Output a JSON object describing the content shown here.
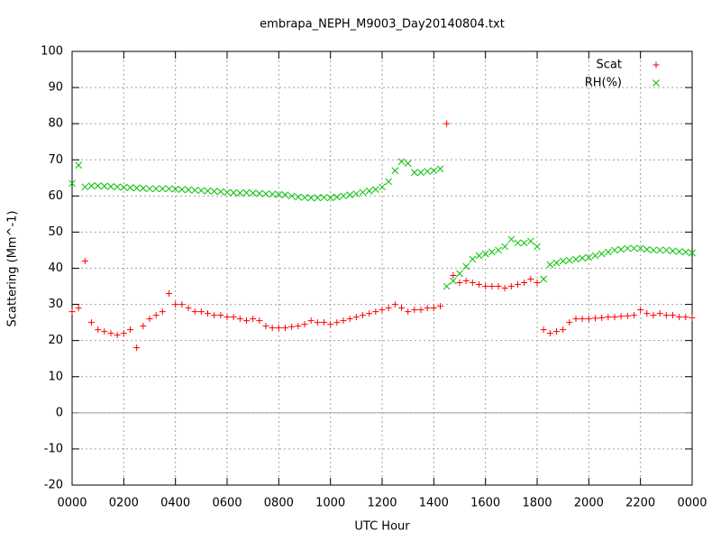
{
  "chart_data": {
    "type": "scatter",
    "title": "embrapa_NEPH_M9003_Day20140804.txt",
    "xlabel": "UTC Hour",
    "ylabel": "Scattering (Mm^-1)",
    "x": [
      0,
      0.25,
      0.5,
      0.75,
      1,
      1.25,
      1.5,
      1.75,
      2,
      2.25,
      2.5,
      2.75,
      3,
      3.25,
      3.5,
      3.75,
      4,
      4.25,
      4.5,
      4.75,
      5,
      5.25,
      5.5,
      5.75,
      6,
      6.25,
      6.5,
      6.75,
      7,
      7.25,
      7.5,
      7.75,
      8,
      8.25,
      8.5,
      8.75,
      9,
      9.25,
      9.5,
      9.75,
      10,
      10.25,
      10.5,
      10.75,
      11,
      11.25,
      11.5,
      11.75,
      12,
      12.25,
      12.5,
      12.75,
      13,
      13.25,
      13.5,
      13.75,
      14,
      14.25,
      14.5,
      14.75,
      15,
      15.25,
      15.5,
      15.75,
      16,
      16.25,
      16.5,
      16.75,
      17,
      17.25,
      17.5,
      17.75,
      18,
      18.25,
      18.5,
      18.75,
      19,
      19.25,
      19.5,
      19.75,
      20,
      20.25,
      20.5,
      20.75,
      21,
      21.25,
      21.5,
      21.75,
      22,
      22.25,
      22.5,
      22.75,
      23,
      23.25,
      23.5,
      23.75,
      24
    ],
    "series": [
      {
        "name": "Scat",
        "color": "#ff0000",
        "marker": "plus",
        "values": [
          28,
          29,
          42,
          25,
          23,
          22.5,
          22,
          21.5,
          22,
          23,
          18,
          24,
          26,
          27,
          28,
          33,
          30,
          30,
          29,
          28,
          28,
          27.5,
          27,
          27,
          26.5,
          26.5,
          26,
          25.5,
          26,
          25.5,
          24,
          23.5,
          23.5,
          23.5,
          23.8,
          24,
          24.5,
          25.5,
          25,
          25,
          24.5,
          25,
          25.5,
          26,
          26.5,
          27,
          27.5,
          28,
          28.5,
          29,
          30,
          29,
          28,
          28.5,
          28.5,
          29,
          29,
          29.5,
          80,
          38,
          36,
          36.5,
          36,
          35.5,
          35,
          35,
          35,
          34.5,
          35,
          35.5,
          36,
          37,
          36,
          23,
          22,
          22.5,
          23,
          25,
          26,
          26,
          26,
          26.2,
          26.3,
          26.5,
          26.5,
          26.7,
          26.8,
          27,
          28.5,
          27.5,
          27,
          27.5,
          27,
          27,
          26.5,
          26.5,
          26.3
        ]
      },
      {
        "name": "RH(%)",
        "color": "#00c000",
        "marker": "cross",
        "values": [
          63.5,
          68.5,
          62.5,
          62.8,
          62.8,
          62.7,
          62.6,
          62.5,
          62.4,
          62.3,
          62.2,
          62.1,
          62,
          62,
          62,
          62,
          61.9,
          61.8,
          61.7,
          61.6,
          61.5,
          61.4,
          61.3,
          61.2,
          61,
          60.9,
          60.8,
          60.9,
          60.8,
          60.7,
          60.6,
          60.5,
          60.4,
          60.3,
          60,
          59.7,
          59.6,
          59.5,
          59.5,
          59.6,
          59.5,
          59.7,
          60,
          60.3,
          60.6,
          61,
          61.4,
          61.8,
          62.5,
          64,
          67,
          69.5,
          69,
          66.5,
          66.5,
          66.8,
          67,
          67.5,
          35,
          36.5,
          38.5,
          40.5,
          42.5,
          43.5,
          44,
          44.5,
          45,
          46,
          48,
          47,
          47,
          47.5,
          46,
          37,
          41,
          41.5,
          42,
          42.2,
          42.5,
          42.8,
          43,
          43.5,
          44,
          44.5,
          45,
          45.2,
          45.5,
          45.5,
          45.5,
          45.2,
          45,
          45,
          45,
          44.8,
          44.6,
          44.5,
          44.2
        ]
      }
    ],
    "xlim": [
      0,
      24
    ],
    "xticks": [
      {
        "value": 0,
        "label": "0000"
      },
      {
        "value": 2,
        "label": "0200"
      },
      {
        "value": 4,
        "label": "0400"
      },
      {
        "value": 6,
        "label": "0600"
      },
      {
        "value": 8,
        "label": "0800"
      },
      {
        "value": 10,
        "label": "1000"
      },
      {
        "value": 12,
        "label": "1200"
      },
      {
        "value": 14,
        "label": "1400"
      },
      {
        "value": 16,
        "label": "1600"
      },
      {
        "value": 18,
        "label": "1800"
      },
      {
        "value": 20,
        "label": "2000"
      },
      {
        "value": 22,
        "label": "2200"
      },
      {
        "value": 24,
        "label": "0000"
      }
    ],
    "ylim": [
      -20,
      100
    ],
    "yticks": [
      -20,
      -10,
      0,
      10,
      20,
      30,
      40,
      50,
      60,
      70,
      80,
      90,
      100
    ],
    "grid": true,
    "zeroaxis": true,
    "legend": "top-right"
  }
}
